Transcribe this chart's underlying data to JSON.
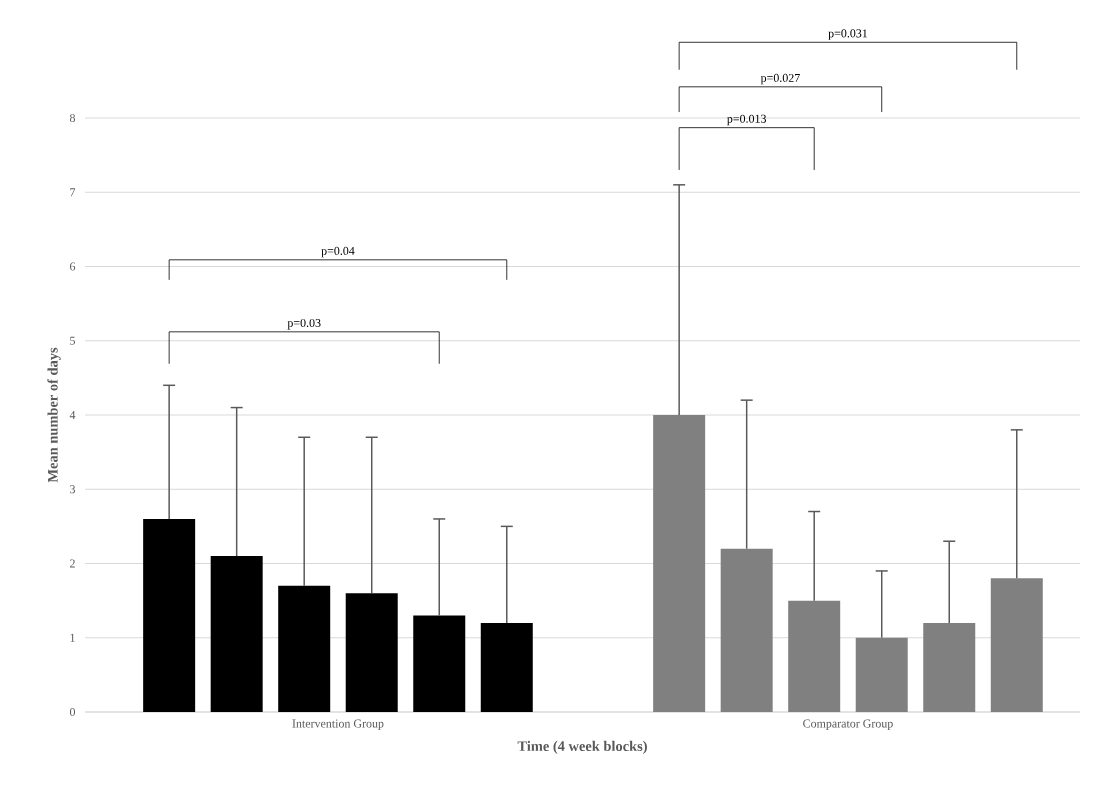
{
  "chart_data": {
    "type": "bar",
    "xlabel": "Time (4 week blocks)",
    "ylabel": "Mean number of days",
    "categories": [
      "Intervention Group",
      "Comparator Group"
    ],
    "series": [
      {
        "colors": [
          "#000000",
          "#808080"
        ],
        "values": [
          2.6,
          4.0
        ],
        "errors": [
          [
            2.6,
            4.4
          ],
          [
            4.0,
            7.1
          ]
        ]
      },
      {
        "colors": [
          "#000000",
          "#808080"
        ],
        "values": [
          2.1,
          2.2
        ],
        "errors": [
          [
            2.1,
            4.1
          ],
          [
            2.2,
            4.2
          ]
        ]
      },
      {
        "colors": [
          "#000000",
          "#808080"
        ],
        "values": [
          1.7,
          1.5
        ],
        "errors": [
          [
            1.7,
            3.7
          ],
          [
            1.5,
            2.7
          ]
        ]
      },
      {
        "colors": [
          "#000000",
          "#808080"
        ],
        "values": [
          1.6,
          1.0
        ],
        "errors": [
          [
            1.6,
            3.7
          ],
          [
            1.0,
            1.9
          ]
        ]
      },
      {
        "colors": [
          "#000000",
          "#808080"
        ],
        "values": [
          1.3,
          1.2
        ],
        "errors": [
          [
            1.3,
            2.6
          ],
          [
            1.2,
            2.3
          ]
        ]
      },
      {
        "colors": [
          "#000000",
          "#808080"
        ],
        "values": [
          1.2,
          1.8
        ],
        "errors": [
          [
            1.2,
            2.5
          ],
          [
            1.8,
            3.8
          ]
        ]
      }
    ],
    "ylim": [
      0,
      8
    ],
    "yticks": [
      0,
      1,
      2,
      3,
      4,
      5,
      6,
      7,
      8
    ],
    "grid": "y",
    "annotations": [
      "p=0.04",
      "p=0.03",
      "p=0.031",
      "p=0.027",
      "p=0.013"
    ]
  }
}
